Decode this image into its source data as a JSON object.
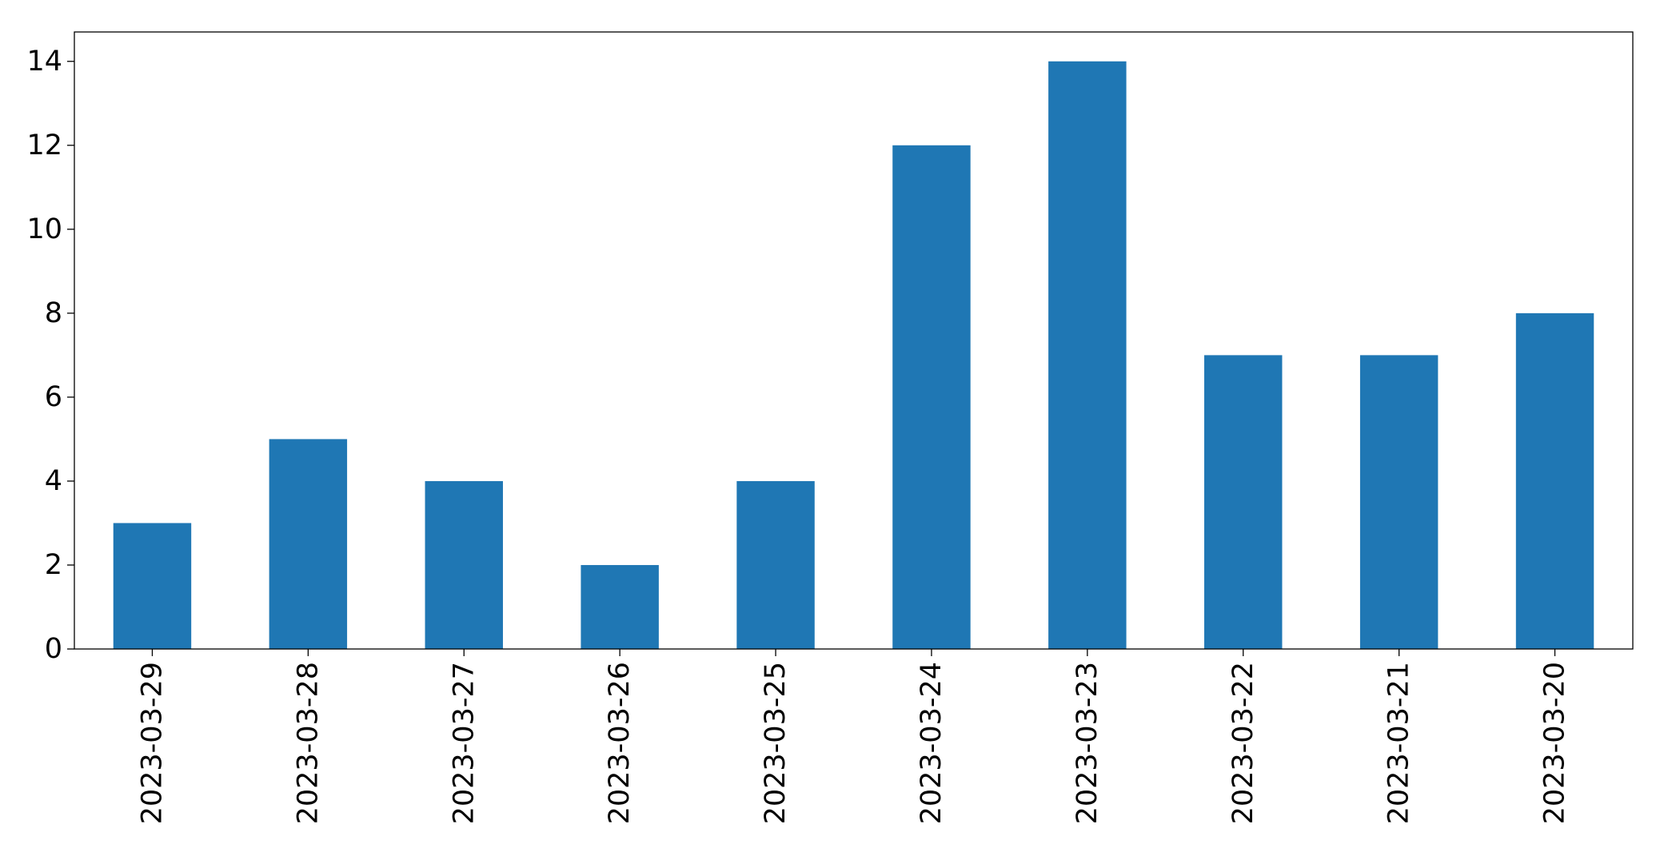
{
  "chart_data": {
    "type": "bar",
    "categories": [
      "2023-03-29",
      "2023-03-28",
      "2023-03-27",
      "2023-03-26",
      "2023-03-25",
      "2023-03-24",
      "2023-03-23",
      "2023-03-22",
      "2023-03-21",
      "2023-03-20"
    ],
    "values": [
      3,
      5,
      4,
      2,
      4,
      12,
      14,
      7,
      7,
      8
    ],
    "color": "#1f77b4",
    "ylim": [
      0,
      14.7
    ],
    "yticks": [
      0,
      2,
      4,
      6,
      8,
      10,
      12,
      14
    ],
    "grid": false
  }
}
